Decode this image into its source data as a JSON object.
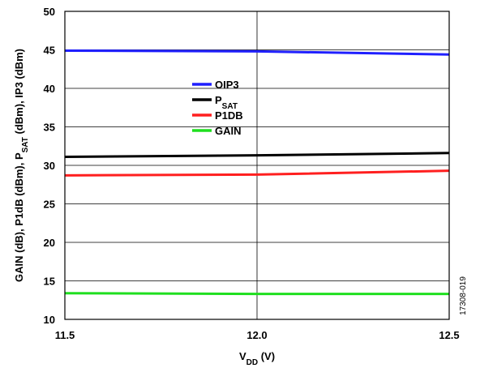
{
  "chart_data": {
    "type": "line",
    "x": [
      11.5,
      12.0,
      12.5
    ],
    "x_tick_labels": [
      "11.5",
      "12.0",
      "12.5"
    ],
    "xlim": [
      11.5,
      12.5
    ],
    "y_tick_labels": [
      "10",
      "15",
      "20",
      "25",
      "30",
      "35",
      "40",
      "45",
      "50"
    ],
    "ylim": [
      10,
      50
    ],
    "xlabel": {
      "main": "V",
      "sub": "DD",
      "rest": " (V)"
    },
    "ylabel": {
      "part1": "GAIN (dB), P1dB (dBm), P",
      "sub": "SAT",
      "part2": " (dBm), IP3 (dBm)"
    },
    "grid": true,
    "legend_position": "center",
    "series": [
      {
        "key": "oip3",
        "label": {
          "main": "OIP3",
          "sub": ""
        },
        "color": "#1f1fff",
        "values": [
          44.9,
          44.8,
          44.4
        ]
      },
      {
        "key": "psat",
        "label": {
          "main": "P",
          "sub": "SAT"
        },
        "color": "#000000",
        "values": [
          31.1,
          31.3,
          31.6
        ]
      },
      {
        "key": "p1db",
        "label": {
          "main": "P1DB",
          "sub": ""
        },
        "color": "#ff1f1f",
        "values": [
          28.7,
          28.8,
          29.3
        ]
      },
      {
        "key": "gain",
        "label": {
          "main": "GAIN",
          "sub": ""
        },
        "color": "#1fdf1f",
        "values": [
          13.4,
          13.3,
          13.3
        ]
      }
    ],
    "figure_id": "17308-019"
  }
}
